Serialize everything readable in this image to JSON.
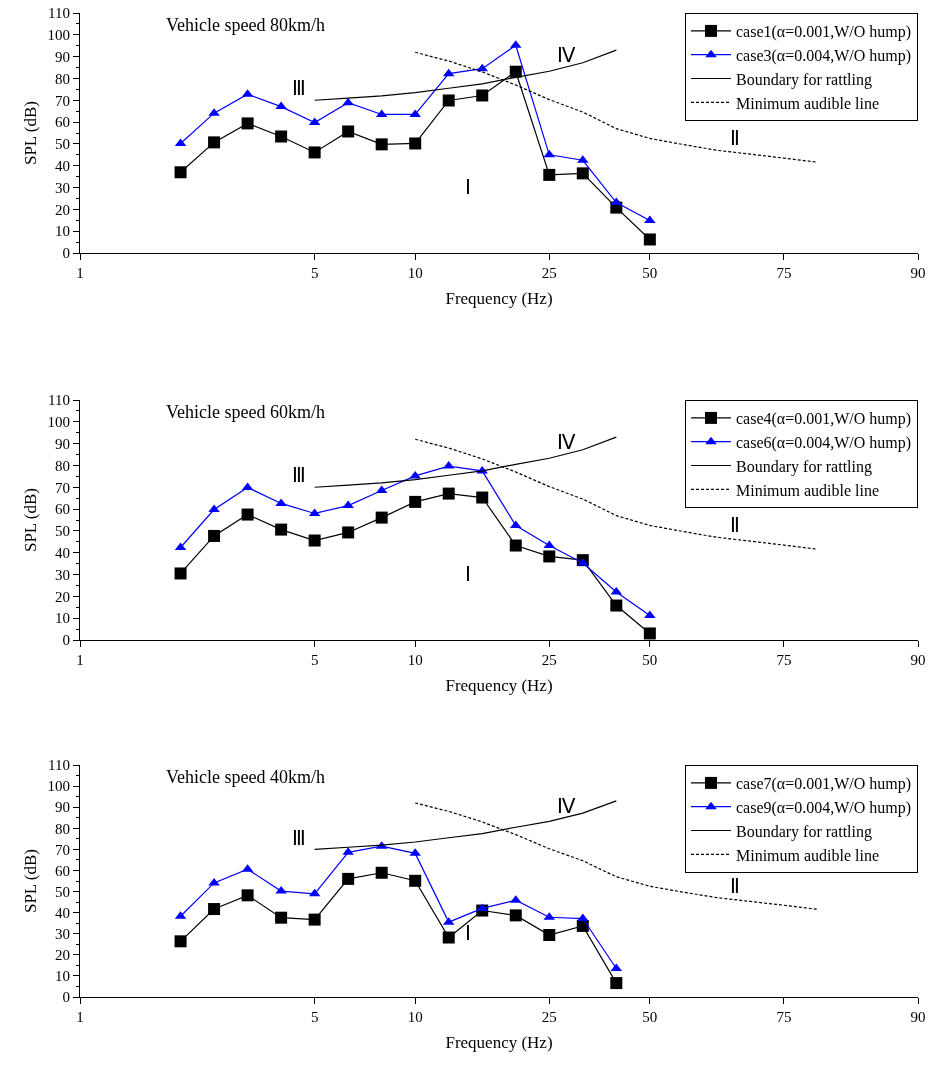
{
  "chart_data": [
    {
      "type": "line",
      "title": "Vehicle speed 80km/h",
      "xlabel": "Frequency (Hz)",
      "ylabel": "SPL (dB)",
      "categories": [
        "1",
        null,
        null,
        null,
        null,
        null,
        null,
        "5",
        null,
        null,
        "10",
        null,
        null,
        null,
        "25",
        null,
        null,
        "50",
        null,
        null,
        null,
        "75",
        null,
        null,
        null,
        "90"
      ],
      "ylim": [
        0,
        110
      ],
      "yticks": [
        0,
        10,
        20,
        30,
        40,
        50,
        60,
        70,
        80,
        90,
        100,
        110
      ],
      "legend": "top right",
      "series": [
        {
          "name": "case1(α=0.001,W/O hump)",
          "color": "#000000",
          "marker": "square",
          "line_style": "solid",
          "values": [
            null,
            null,
            null,
            37,
            50.7,
            59.4,
            53.4,
            46.1,
            55.7,
            49.8,
            50.2,
            69.9,
            72.2,
            83.1,
            35.8,
            36.5,
            20.8,
            6.2,
            null,
            null,
            null,
            null,
            null,
            null,
            null,
            null
          ]
        },
        {
          "name": "case3(α=0.004,W/O hump)",
          "color": "#0000ff",
          "marker": "triangle",
          "line_style": "solid",
          "values": [
            null,
            null,
            null,
            50.2,
            64.1,
            72.8,
            67.1,
            59.8,
            68.9,
            63.5,
            63.5,
            82.2,
            84.5,
            95.2,
            45,
            42.5,
            23.1,
            14.9,
            null,
            null,
            null,
            null,
            null,
            null,
            null,
            null
          ]
        },
        {
          "name": "Boundary for rattling",
          "color": "#000000",
          "marker": "none",
          "line_style": "solid",
          "values": [
            null,
            null,
            null,
            null,
            null,
            null,
            null,
            70,
            71,
            72,
            73.5,
            75.5,
            77.5,
            80.5,
            83.3,
            87.2,
            93,
            null,
            null,
            null,
            null,
            null,
            null,
            null,
            null,
            null
          ]
        },
        {
          "name": "Minimum audible line",
          "color": "#000000",
          "marker": "none",
          "line_style": "dotted",
          "values": [
            null,
            null,
            null,
            null,
            null,
            null,
            null,
            null,
            null,
            null,
            92,
            88,
            83,
            77,
            70.3,
            64.6,
            57,
            52.5,
            49.7,
            47.1,
            45.3,
            43.5,
            41.6,
            null,
            null,
            null
          ]
        }
      ],
      "annotations": [
        "Ⅲ",
        "Ⅳ",
        "Ⅰ",
        "Ⅱ"
      ]
    },
    {
      "type": "line",
      "title": "Vehicle speed 60km/h",
      "xlabel": "Frequency (Hz)",
      "ylabel": "SPL (dB)",
      "categories": [
        "1",
        null,
        null,
        null,
        null,
        null,
        null,
        "5",
        null,
        null,
        "10",
        null,
        null,
        null,
        "25",
        null,
        null,
        "50",
        null,
        null,
        null,
        "75",
        null,
        null,
        null,
        "90"
      ],
      "ylim": [
        0,
        110
      ],
      "yticks": [
        0,
        10,
        20,
        30,
        40,
        50,
        60,
        70,
        80,
        90,
        100,
        110
      ],
      "legend": "top right",
      "series": [
        {
          "name": "case4(α=0.001,W/O hump)",
          "color": "#000000",
          "marker": "square",
          "line_style": "solid",
          "values": [
            null,
            null,
            null,
            30.5,
            47.7,
            57.5,
            50.6,
            45.6,
            49.3,
            56.1,
            63.3,
            67.1,
            65.3,
            43.3,
            38.3,
            36.6,
            15.8,
            3,
            null,
            null,
            null,
            null,
            null,
            null,
            null,
            null
          ]
        },
        {
          "name": "case6(α=0.004,W/O hump)",
          "color": "#0000ff",
          "marker": "triangle",
          "line_style": "solid",
          "values": [
            null,
            null,
            null,
            42.4,
            59.8,
            69.9,
            62.6,
            58,
            61.6,
            68.5,
            75.2,
            79.7,
            77.5,
            52.5,
            43.3,
            35.3,
            22,
            11.2,
            null,
            null,
            null,
            null,
            null,
            null,
            null,
            null
          ]
        },
        {
          "name": "Boundary for rattling",
          "color": "#000000",
          "marker": "none",
          "line_style": "solid",
          "values": [
            null,
            null,
            null,
            null,
            null,
            null,
            null,
            70,
            71,
            72,
            73.5,
            75.5,
            77.5,
            80.5,
            83.3,
            87.2,
            93,
            null,
            null,
            null,
            null,
            null,
            null,
            null,
            null,
            null
          ]
        },
        {
          "name": "Minimum audible line",
          "color": "#000000",
          "marker": "none",
          "line_style": "dotted",
          "values": [
            null,
            null,
            null,
            null,
            null,
            null,
            null,
            null,
            null,
            null,
            92,
            88,
            83,
            77,
            70.3,
            64.6,
            57,
            52.5,
            49.7,
            47.1,
            45.3,
            43.5,
            41.6,
            null,
            null,
            null
          ]
        }
      ],
      "annotations": [
        "Ⅲ",
        "Ⅳ",
        "Ⅰ",
        "Ⅱ"
      ]
    },
    {
      "type": "line",
      "title": "Vehicle speed 40km/h",
      "xlabel": "Frequency (Hz)",
      "ylabel": "SPL (dB)",
      "categories": [
        "1",
        null,
        null,
        null,
        null,
        null,
        null,
        "5",
        null,
        null,
        "10",
        null,
        null,
        null,
        "25",
        null,
        null,
        "50",
        null,
        null,
        null,
        "75",
        null,
        null,
        null,
        "90"
      ],
      "ylim": [
        0,
        110
      ],
      "yticks": [
        0,
        10,
        20,
        30,
        40,
        50,
        60,
        70,
        80,
        90,
        100,
        110
      ],
      "legend": "top right",
      "series": [
        {
          "name": "case7(α=0.001,W/O hump)",
          "color": "#000000",
          "marker": "square",
          "line_style": "solid",
          "values": [
            null,
            null,
            null,
            26.4,
            41.7,
            48.2,
            37.6,
            36.7,
            56,
            58.9,
            55.1,
            28.2,
            41,
            38.7,
            29.4,
            33.7,
            6.6,
            null,
            null,
            null,
            null,
            null,
            null,
            null,
            null,
            null
          ]
        },
        {
          "name": "case9(α=0.004,W/O hump)",
          "color": "#0000ff",
          "marker": "triangle",
          "line_style": "solid",
          "values": [
            null,
            null,
            null,
            38.3,
            54.1,
            60.6,
            50.2,
            48.9,
            68.6,
            71.5,
            68.1,
            35.5,
            42,
            45.9,
            37.8,
            37.2,
            13.5,
            null,
            null,
            null,
            null,
            null,
            null,
            null,
            null,
            null
          ]
        },
        {
          "name": "Boundary for rattling",
          "color": "#000000",
          "marker": "none",
          "line_style": "solid",
          "values": [
            null,
            null,
            null,
            null,
            null,
            null,
            null,
            70,
            71,
            72,
            73.5,
            75.5,
            77.5,
            80.5,
            83.3,
            87.2,
            93,
            null,
            null,
            null,
            null,
            null,
            null,
            null,
            null,
            null
          ]
        },
        {
          "name": "Minimum audible line",
          "color": "#000000",
          "marker": "none",
          "line_style": "dotted",
          "values": [
            null,
            null,
            null,
            null,
            null,
            null,
            null,
            null,
            null,
            null,
            92,
            88,
            83,
            77,
            70.3,
            64.6,
            57,
            52.5,
            49.7,
            47.1,
            45.3,
            43.5,
            41.6,
            null,
            null,
            null
          ]
        }
      ],
      "annotations": [
        "Ⅲ",
        "Ⅳ",
        "Ⅰ",
        "Ⅱ"
      ]
    }
  ]
}
